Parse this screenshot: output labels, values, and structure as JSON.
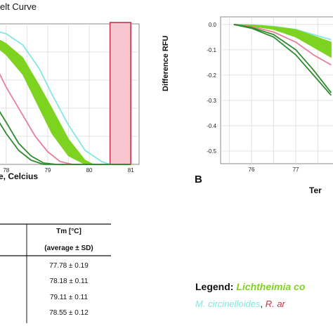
{
  "colors": {
    "lichtheimia": "#7ED321",
    "m_circinelloides": "#7FE8E0",
    "r_arrhizus": "#E8809A",
    "dark_green": "#2E8B2E",
    "band_fill": "#F7C6CF",
    "band_edge": "#C8364C",
    "grid": "#dddddd"
  },
  "panel_a": {
    "title": "elt Curve",
    "xlabel": "e, Celcius"
  },
  "panel_b": {
    "letter": "B",
    "ylabel": "Difference RFU",
    "xlabel": "Ter"
  },
  "table": {
    "header_line1": "Tm [°C]",
    "header_line2": "(average ± SD)",
    "rows": [
      "77.78 ± 0.19",
      "78.18 ± 0.11",
      "79.11 ± 0.11",
      "78.55 ± 0.12"
    ]
  },
  "legend": {
    "title": "Legend:",
    "lichtheimia_text": "Lichtheimia co",
    "m_circinelloides_text": "M. circinelloides",
    "separator": ", ",
    "r_arrhizus_text": "R. ar"
  },
  "chart_data": [
    {
      "type": "line",
      "xlabel": "e, Celcius",
      "ylabel": "",
      "xlim": [
        77.75,
        81.2
      ],
      "ylim": [
        0,
        1
      ],
      "grid": true,
      "tick_labels_x": [
        "78",
        "79",
        "80",
        "81"
      ],
      "highlight_band": [
        80.5,
        81
      ],
      "series": [
        {
          "color": "#7FE8E0",
          "x": [
            77.75,
            78.0,
            78.4,
            78.8,
            79.1,
            79.5,
            79.9,
            80.3,
            80.5,
            81.0
          ],
          "y": [
            0.95,
            0.93,
            0.85,
            0.68,
            0.5,
            0.28,
            0.1,
            0.02,
            0.0,
            0.0
          ]
        },
        {
          "color": "#7ED321",
          "band": true,
          "x": [
            77.75,
            78.0,
            78.4,
            78.8,
            79.1,
            79.5,
            79.9,
            80.1,
            81.0
          ],
          "y_upper": [
            0.9,
            0.86,
            0.76,
            0.56,
            0.4,
            0.18,
            0.03,
            0.0,
            0.0
          ],
          "y_lower": [
            0.84,
            0.78,
            0.64,
            0.4,
            0.22,
            0.06,
            0.0,
            0.0,
            0.0
          ]
        },
        {
          "color": "#E8809A",
          "x": [
            77.75,
            78.0,
            78.4,
            78.7,
            79.0,
            79.3,
            79.6,
            81.0
          ],
          "y": [
            0.7,
            0.55,
            0.35,
            0.2,
            0.09,
            0.02,
            0.0,
            0.0
          ]
        },
        {
          "color": "#2E8B2E",
          "x": [
            77.75,
            78.0,
            78.3,
            78.6,
            78.9,
            79.2,
            81.0
          ],
          "y": [
            0.42,
            0.3,
            0.15,
            0.06,
            0.01,
            0.0,
            0.0
          ]
        },
        {
          "color": "#2E8B2E",
          "x": [
            77.75,
            78.0,
            78.3,
            78.6,
            78.9,
            79.2,
            81.0
          ],
          "y": [
            0.34,
            0.22,
            0.1,
            0.03,
            0.0,
            0.0,
            0.0
          ]
        }
      ]
    },
    {
      "type": "line",
      "xlabel": "Ter",
      "ylabel": "Difference RFU",
      "xlim": [
        75.3,
        78.0
      ],
      "ylim": [
        -0.55,
        0.03
      ],
      "grid": true,
      "tick_labels_x": [
        "76",
        "77"
      ],
      "tick_labels_y": [
        "0.0",
        "-0.1",
        "-0.2",
        "-0.3",
        "-0.4",
        "-0.5"
      ],
      "series": [
        {
          "color": "#7FE8E0",
          "x": [
            75.6,
            76.0,
            76.5,
            77.0,
            77.4,
            77.8
          ],
          "y": [
            0.0,
            -0.002,
            -0.008,
            -0.02,
            -0.04,
            -0.06
          ]
        },
        {
          "color": "#7ED321",
          "band": true,
          "x": [
            75.6,
            76.0,
            76.5,
            77.0,
            77.4,
            77.8
          ],
          "y_upper": [
            0.0,
            -0.002,
            -0.008,
            -0.02,
            -0.045,
            -0.07
          ],
          "y_lower": [
            0.0,
            -0.006,
            -0.02,
            -0.05,
            -0.09,
            -0.13
          ]
        },
        {
          "color": "#E8809A",
          "x": [
            75.6,
            76.0,
            76.5,
            77.0,
            77.4,
            77.8
          ],
          "y": [
            0.0,
            -0.008,
            -0.03,
            -0.07,
            -0.12,
            -0.16
          ]
        },
        {
          "color": "#2E8B2E",
          "x": [
            75.6,
            76.0,
            76.5,
            77.0,
            77.4,
            77.8
          ],
          "y": [
            0.0,
            -0.012,
            -0.04,
            -0.1,
            -0.18,
            -0.27
          ]
        },
        {
          "color": "#2E8B2E",
          "x": [
            75.6,
            76.0,
            76.5,
            77.0,
            77.4,
            77.8
          ],
          "y": [
            0.0,
            -0.015,
            -0.05,
            -0.12,
            -0.2,
            -0.28
          ]
        }
      ]
    }
  ]
}
